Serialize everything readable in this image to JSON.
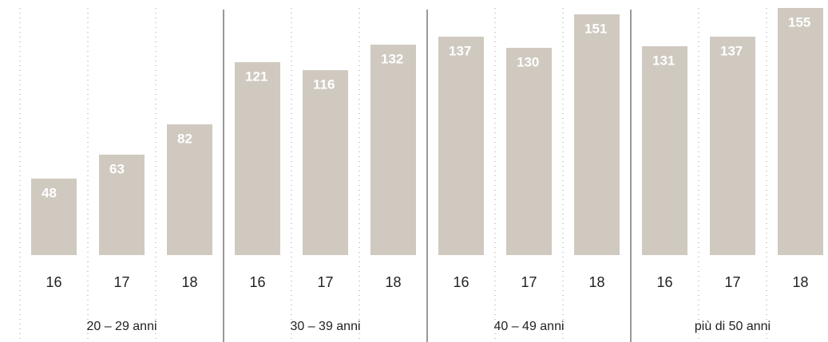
{
  "chart_data": {
    "type": "bar",
    "color": "#cfc9c0",
    "groups": [
      {
        "name": "20 – 29 anni",
        "categories": [
          "16",
          "17",
          "18"
        ],
        "values": [
          48,
          63,
          82
        ]
      },
      {
        "name": "30 – 39 anni",
        "categories": [
          "16",
          "17",
          "18"
        ],
        "values": [
          121,
          116,
          132
        ]
      },
      {
        "name": "40 – 49 anni",
        "categories": [
          "16",
          "17",
          "18"
        ],
        "values": [
          137,
          130,
          151
        ]
      },
      {
        "name": "più di 50 anni",
        "categories": [
          "16",
          "17",
          "18"
        ],
        "values": [
          131,
          137,
          155
        ]
      }
    ]
  }
}
